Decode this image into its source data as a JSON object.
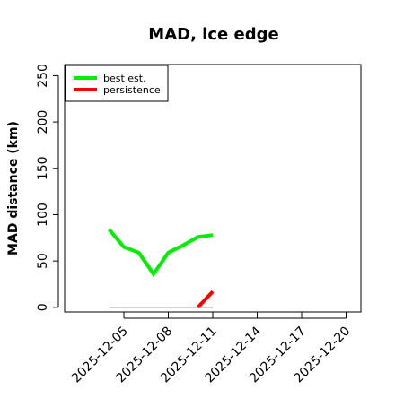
{
  "chart_data": {
    "type": "line",
    "title": "MAD, ice edge",
    "xlabel": "",
    "ylabel": "MAD distance (km)",
    "x_ticks": [
      "2025-12-05",
      "2025-12-08",
      "2025-12-11",
      "2025-12-14",
      "2025-12-17",
      "2025-12-20"
    ],
    "xlim": [
      "2025-12-01",
      "2025-12-21"
    ],
    "ylim": [
      -5,
      262
    ],
    "y_ticks": [
      0,
      50,
      100,
      150,
      200,
      250
    ],
    "grid": false,
    "legend_position": "top-left",
    "series": [
      {
        "name": "best est.",
        "color": "#00ee00",
        "points": [
          [
            "2025-12-04",
            84
          ],
          [
            "2025-12-05",
            65
          ],
          [
            "2025-12-06",
            59
          ],
          [
            "2025-12-07",
            36
          ],
          [
            "2025-12-08",
            59
          ],
          [
            "2025-12-09",
            67
          ],
          [
            "2025-12-10",
            76
          ],
          [
            "2025-12-11",
            78
          ]
        ]
      },
      {
        "name": "persistence",
        "color": "#ff0000",
        "points": [
          [
            "2025-12-10",
            0
          ],
          [
            "2025-12-11",
            17
          ]
        ]
      }
    ],
    "reference_line": {
      "y": 0,
      "from": "2025-12-04",
      "to": "2025-12-11",
      "color": "#888888"
    }
  }
}
